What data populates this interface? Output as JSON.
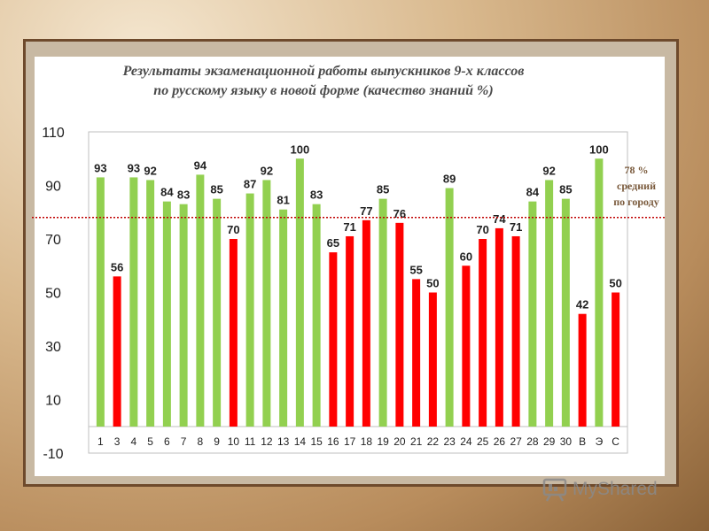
{
  "title_line1": "Результаты экзаменационной работы выпускников 9-х классов",
  "title_line2": "по русскому языку в новой форме (качество знаний %)",
  "average_note": [
    "78 %",
    "средний",
    "по городу"
  ],
  "watermark": "MyShared",
  "colors": {
    "above": "#92d050",
    "below": "#ff0000",
    "average_line": "#c00000"
  },
  "chart_data": {
    "type": "bar",
    "title": "Результаты экзаменационной работы выпускников 9-х классов по русскому языку в новой форме (качество знаний %)",
    "xlabel": "",
    "ylabel": "",
    "ylim": [
      -10,
      110
    ],
    "yticks": [
      110,
      90,
      70,
      50,
      30,
      10,
      -10
    ],
    "reference_line": {
      "value": 78,
      "label": "78 % средний по городу"
    },
    "categories": [
      "1",
      "3",
      "4",
      "5",
      "6",
      "7",
      "8",
      "9",
      "10",
      "11",
      "12",
      "13",
      "14",
      "15",
      "16",
      "17",
      "18",
      "19",
      "20",
      "21",
      "22",
      "23",
      "24",
      "25",
      "26",
      "27",
      "28",
      "29",
      "30",
      "В",
      "Э",
      "С"
    ],
    "values": [
      93,
      56,
      93,
      92,
      84,
      83,
      94,
      85,
      70,
      87,
      92,
      81,
      100,
      83,
      65,
      71,
      77,
      85,
      76,
      55,
      50,
      89,
      60,
      70,
      74,
      71,
      84,
      92,
      85,
      42,
      100,
      50
    ],
    "grid": false,
    "legend": "none"
  }
}
